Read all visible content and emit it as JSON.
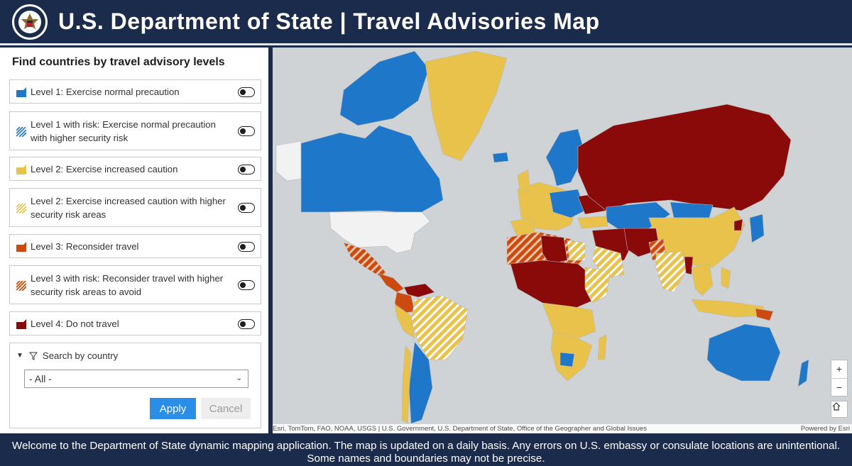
{
  "header": {
    "title": "U.S. Department of State | Travel Advisories Map"
  },
  "panel": {
    "heading": "Find countries by travel advisory levels",
    "levels": [
      {
        "label": "Level 1: Exercise normal precaution",
        "color": "#1f77c9",
        "pattern": "solid"
      },
      {
        "label": "Level 1 with risk: Exercise normal precaution with higher security risk",
        "color": "#1f77c9",
        "pattern": "hatched"
      },
      {
        "label": "Level 2: Exercise increased caution",
        "color": "#e8c24a",
        "pattern": "solid"
      },
      {
        "label": "Level 2: Exercise increased caution with higher security risk areas",
        "color": "#e8c24a",
        "pattern": "hatched"
      },
      {
        "label": "Level 3: Reconsider travel",
        "color": "#cc4a0f",
        "pattern": "solid"
      },
      {
        "label": "Level 3 with risk: Reconsider travel with higher security risk areas to avoid",
        "color": "#cc4a0f",
        "pattern": "hatched"
      },
      {
        "label": "Level 4: Do not travel",
        "color": "#8a0a0a",
        "pattern": "solid"
      }
    ],
    "search": {
      "label": "Search by country",
      "selected": "- All -",
      "apply_label": "Apply",
      "cancel_label": "Cancel"
    }
  },
  "map": {
    "attribution": "Esri, TomTom, FAO, NOAA, USGS | U.S. Government, U.S. Department of State, Office of the Geographer and Global Issues",
    "powered_by": "Powered by Esri",
    "zoom_in": "+",
    "zoom_out": "−"
  },
  "footer": {
    "message": "Welcome to the Department of State dynamic mapping application. The map is updated on a daily basis.  Any errors on U.S. embassy or consulate locations are unintentional. Some names and boundaries may not be precise."
  }
}
